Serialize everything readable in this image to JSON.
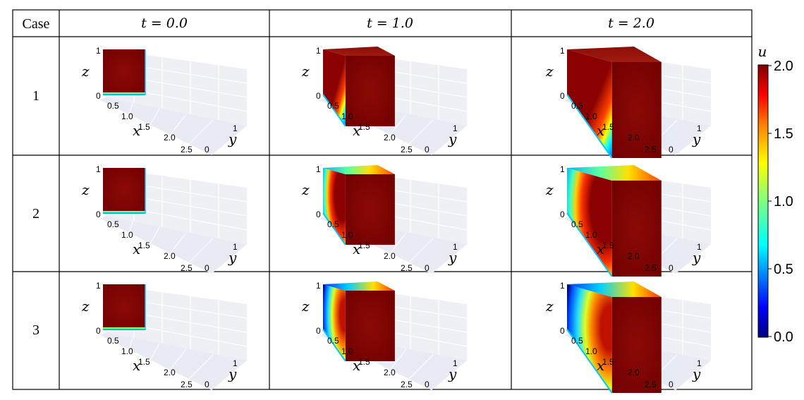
{
  "table": {
    "corner_label": "Case",
    "time_headers": [
      "t = 0.0",
      "t = 1.0",
      "t = 2.0"
    ],
    "cases": [
      "1",
      "2",
      "3"
    ]
  },
  "panel_axes": {
    "z_label": "z",
    "x_label": "x",
    "y_label": "y",
    "z_ticks": [
      "1",
      "0"
    ],
    "x_ticks": [
      "0.5",
      "1.0",
      "1.5",
      "2.0",
      "2.5"
    ],
    "y_ticks": [
      "1",
      "0"
    ]
  },
  "colorbar": {
    "label": "u",
    "ticks": [
      "2.0",
      "1.5",
      "1.0",
      "0.5",
      "0.0"
    ],
    "range": [
      0.0,
      2.0
    ],
    "colormap": "jet",
    "colors": [
      "#00007f",
      "#0000ff",
      "#007fff",
      "#00ffff",
      "#7fff7f",
      "#ffff00",
      "#ff7f00",
      "#ff0000",
      "#7f0000"
    ]
  },
  "chart_data": {
    "type": "heatmap",
    "description_rows": "3 cases x 3 time snapshots of a 3D scalar field u on a box domain; domain length in x grows with time (x extent 0, 1, 2)",
    "x_extent_per_time": [
      0.0,
      1.0,
      2.0
    ],
    "times": [
      0.0,
      1.0,
      2.0
    ],
    "value_range": [
      0.0,
      2.0
    ]
  }
}
